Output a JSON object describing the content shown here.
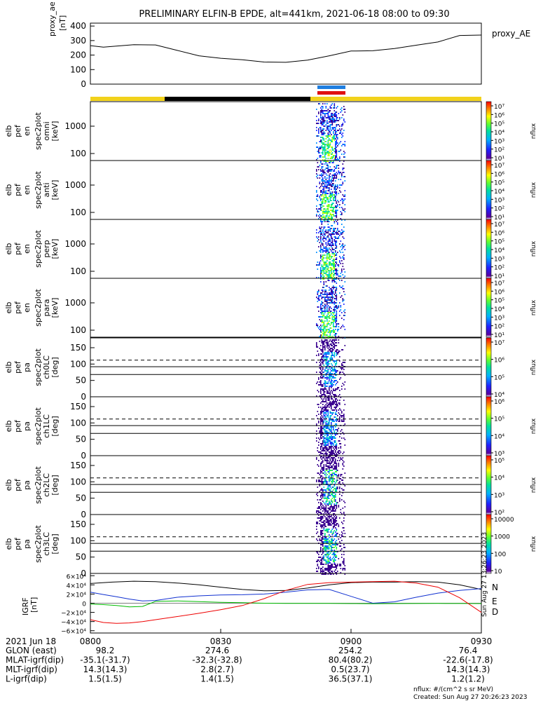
{
  "title": "PRELIMINARY ELFIN-B EPDE, alt=441km, 2021-06-18 08:00 to 09:30",
  "colors": {
    "ae_line": "#000000",
    "bar_yellow": "#f2d21b",
    "bar_black": "#000000",
    "bar_blue": "#1f7fe0",
    "bar_red": "#e01010",
    "grf_n": "#000000",
    "grf_e": "#00bb00",
    "grf_d": "#ee0000",
    "grf_blue": "#1030d0",
    "label_n": "#1030d0",
    "label_e": "#00cc00",
    "label_d": "#ee0000"
  },
  "chart_data": [
    {
      "id": "proxy_ae",
      "type": "line",
      "title": "proxy_ae",
      "ylabel": [
        "proxy_ae",
        "[nT]"
      ],
      "right_label": "proxy_AE",
      "ylim": [
        0,
        420
      ],
      "yticks": [
        "400",
        "300",
        "200",
        "100",
        "0"
      ],
      "x": [
        0,
        3,
        6,
        10,
        15,
        20,
        25,
        30,
        35,
        40,
        45,
        50,
        55,
        60,
        65,
        70,
        75,
        80,
        85,
        90
      ],
      "values": [
        265,
        255,
        262,
        272,
        270,
        232,
        195,
        178,
        168,
        152,
        150,
        165,
        195,
        228,
        230,
        245,
        268,
        290,
        335,
        338
      ]
    },
    {
      "id": "omni",
      "type": "heatmap",
      "ylabel": [
        "elb",
        "pef",
        "en",
        "spec2plot",
        "omni",
        "[keV]"
      ],
      "yticks": [
        "1000",
        "100"
      ],
      "colorbar": {
        "label": "nflux",
        "ticks": [
          "10⁷",
          "10⁶",
          "10⁵",
          "10⁴",
          "10³",
          "10²",
          "10¹"
        ]
      }
    },
    {
      "id": "anti",
      "type": "heatmap",
      "ylabel": [
        "elb",
        "pef",
        "en",
        "spec2plot",
        "anti",
        "[keV]"
      ],
      "yticks": [
        "1000",
        "100"
      ],
      "colorbar": {
        "label": "nflux",
        "ticks": [
          "10⁷",
          "10⁶",
          "10⁵",
          "10⁴",
          "10³",
          "10²",
          "10¹"
        ]
      }
    },
    {
      "id": "perp",
      "type": "heatmap",
      "ylabel": [
        "elb",
        "pef",
        "en",
        "spec2plot",
        "perp",
        "[keV]"
      ],
      "yticks": [
        "1000",
        "100"
      ],
      "colorbar": {
        "label": "nflux",
        "ticks": [
          "10⁷",
          "10⁶",
          "10⁵",
          "10⁴",
          "10³",
          "10²",
          "10¹"
        ]
      }
    },
    {
      "id": "para",
      "type": "heatmap",
      "ylabel": [
        "elb",
        "pef",
        "en",
        "spec2plot",
        "para",
        "[keV]"
      ],
      "yticks": [
        "1000",
        "100"
      ],
      "colorbar": {
        "label": "nflux",
        "ticks": [
          "10⁷",
          "10⁶",
          "10⁵",
          "10⁴",
          "10³",
          "10²",
          "10¹"
        ]
      }
    },
    {
      "id": "ch0LC",
      "type": "heatmap",
      "ylabel": [
        "elb",
        "pef",
        "pa",
        "spec2plot",
        "ch0LC",
        "[deg]"
      ],
      "ylim": [
        0,
        180
      ],
      "yticks": [
        "150",
        "100",
        "50",
        "0"
      ],
      "colorbar": {
        "label": "nflux",
        "ticks": [
          "10⁷",
          "10⁶",
          "10⁵",
          "10⁴"
        ]
      }
    },
    {
      "id": "ch1LC",
      "type": "heatmap",
      "ylabel": [
        "elb",
        "pef",
        "pa",
        "spec2plot",
        "ch1LC",
        "[deg]"
      ],
      "ylim": [
        0,
        180
      ],
      "yticks": [
        "150",
        "100",
        "50",
        "0"
      ],
      "colorbar": {
        "label": "nflux",
        "ticks": [
          "10⁶",
          "10⁵",
          "10⁴",
          "10³"
        ]
      }
    },
    {
      "id": "ch2LC",
      "type": "heatmap",
      "ylabel": [
        "elb",
        "pef",
        "pa",
        "spec2plot",
        "ch2LC",
        "[deg]"
      ],
      "ylim": [
        0,
        180
      ],
      "yticks": [
        "150",
        "100",
        "50",
        "0"
      ],
      "colorbar": {
        "label": "nflux",
        "ticks": [
          "10⁵",
          "10⁴",
          "10³",
          "10²"
        ]
      }
    },
    {
      "id": "ch3LC",
      "type": "heatmap",
      "ylabel": [
        "elb",
        "pef",
        "pa",
        "spec2plot",
        "ch3LC",
        "[deg]"
      ],
      "ylim": [
        0,
        180
      ],
      "yticks": [
        "150",
        "100",
        "50",
        "0"
      ],
      "colorbar": {
        "label": "nflux",
        "ticks": [
          "10000",
          "1000",
          "100",
          "10"
        ]
      }
    },
    {
      "id": "igrf",
      "type": "line",
      "ylabel": [
        "IGRF",
        "[nT]"
      ],
      "ylim": [
        -65000,
        65000
      ],
      "yticks": [
        "6×10⁴",
        "4×10⁴",
        "2×10⁴",
        "0",
        "−2×10⁴",
        "−4×10⁴",
        "−6×10⁴"
      ],
      "legend": [
        "N",
        "E",
        "D"
      ],
      "series": [
        {
          "name": "N",
          "x": [
            0,
            5,
            10,
            15,
            20,
            25,
            30,
            35,
            40,
            45,
            50,
            55,
            60,
            65,
            70,
            75,
            80,
            85,
            90
          ],
          "values": [
            43000,
            46000,
            48000,
            47000,
            44000,
            40000,
            35000,
            30000,
            27000,
            28000,
            33000,
            40000,
            45000,
            46000,
            46000,
            47000,
            46000,
            40000,
            30000
          ]
        },
        {
          "name": "blue",
          "x": [
            0,
            3,
            6,
            9,
            12,
            15,
            20,
            25,
            30,
            35,
            40,
            45,
            50,
            55,
            60,
            65,
            70,
            75,
            80,
            85,
            90
          ],
          "values": [
            24000,
            19000,
            14000,
            9000,
            5000,
            6000,
            13000,
            16000,
            18000,
            18500,
            20000,
            24000,
            29000,
            30000,
            15000,
            0,
            3000,
            13000,
            22000,
            28000,
            32000
          ]
        },
        {
          "name": "E",
          "x": [
            0,
            3,
            6,
            9,
            12,
            15,
            20,
            25,
            30,
            35,
            40,
            45,
            50,
            55,
            60,
            65,
            70,
            75,
            80,
            85,
            90
          ],
          "values": [
            -2000,
            -3000,
            -5000,
            -8000,
            -7000,
            4000,
            5000,
            3500,
            2000,
            1000,
            0,
            -500,
            -500,
            -500,
            -800,
            -1000,
            -800,
            -600,
            -500,
            -600,
            -800
          ]
        },
        {
          "name": "D",
          "x": [
            0,
            3,
            6,
            9,
            12,
            15,
            20,
            25,
            30,
            35,
            40,
            45,
            50,
            55,
            60,
            65,
            70,
            75,
            80,
            85,
            90
          ],
          "values": [
            -36000,
            -42000,
            -44000,
            -43000,
            -40000,
            -36000,
            -29000,
            -22000,
            -14000,
            -5000,
            10000,
            28000,
            41000,
            45000,
            46000,
            47000,
            48000,
            44000,
            35000,
            12000,
            -20000
          ]
        }
      ]
    }
  ],
  "x_axis": {
    "ticks": [
      "0800",
      "0830",
      "0900",
      "0930"
    ],
    "range_minutes": [
      0,
      90
    ],
    "tick_minutes": [
      0,
      30,
      60,
      90
    ]
  },
  "ephemeris": {
    "date_label": "2021 Jun 18",
    "rows": [
      {
        "label": "GLON (east)",
        "values": [
          "98.2",
          "274.6",
          "254.2",
          "76.4"
        ]
      },
      {
        "label": "MLAT-igrf(dip)",
        "values": [
          "-35.1(-31.7)",
          "-32.3(-32.8)",
          "80.4(80.2)",
          "-22.6(-17.8)"
        ]
      },
      {
        "label": "MLT-igrf(dip)",
        "values": [
          "14.3(14.3)",
          "2.8(2.7)",
          "0.5(23.7)",
          "14.3(14.3)"
        ]
      },
      {
        "label": "L-igrf(dip)",
        "values": [
          "1.5(1.5)",
          "1.4(1.5)",
          "36.5(37.1)",
          "1.2(1.2)"
        ]
      }
    ]
  },
  "footer": {
    "units": "nflux: #/(cm^2 s sr MeV)",
    "created": "Created: Sun Aug 27 20:26:23 2023",
    "vertical_stamp": "Sun Aug 27 13:26:23 2023"
  }
}
